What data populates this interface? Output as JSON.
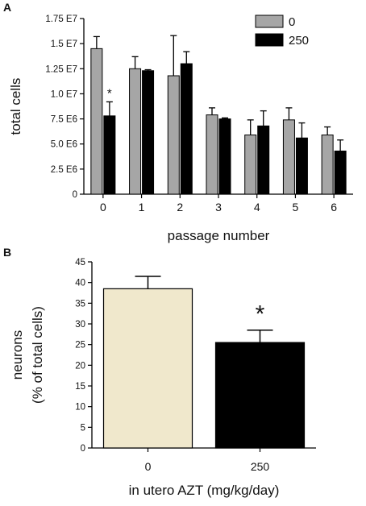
{
  "chart_data": [
    {
      "panel": "A",
      "type": "bar",
      "ylabel": "total cells",
      "xlabel": "passage number",
      "categories": [
        "0",
        "1",
        "2",
        "3",
        "4",
        "5",
        "6"
      ],
      "ylim": [
        0,
        17500000
      ],
      "yticks": [
        0,
        2500000,
        5000000,
        7500000,
        10000000,
        12500000,
        15000000,
        17500000
      ],
      "ytick_labels": [
        "0",
        "2.5 E6",
        "5.0 E6",
        "7.5 E6",
        "1.0 E7",
        "1.25 E7",
        "1.5 E7",
        "1.75 E7"
      ],
      "legend_position": "top-right",
      "series": [
        {
          "name": "0",
          "color": "#a6a6a6",
          "values": [
            14500000,
            12500000,
            11800000,
            7900000,
            5900000,
            7400000,
            5900000
          ],
          "errors": [
            1200000,
            1200000,
            4000000,
            700000,
            1500000,
            1200000,
            800000
          ]
        },
        {
          "name": "250",
          "color": "#000000",
          "values": [
            7800000,
            12300000,
            13000000,
            7500000,
            6800000,
            5600000,
            4300000
          ],
          "errors": [
            1400000,
            100000,
            1200000,
            100000,
            1500000,
            1500000,
            1100000
          ]
        }
      ],
      "annotations": [
        {
          "text": "*",
          "category": "0",
          "series": "250"
        }
      ]
    },
    {
      "panel": "B",
      "type": "bar",
      "ylabel_lines": [
        "neurons",
        "(% of total cells)"
      ],
      "xlabel": "in utero AZT (mg/kg/day)",
      "categories": [
        "0",
        "250"
      ],
      "values": [
        38.5,
        25.5
      ],
      "errors": [
        3.0,
        3.0
      ],
      "colors": [
        "#f0e8cc",
        "#000000"
      ],
      "ylim": [
        0,
        45
      ],
      "yticks": [
        0,
        5,
        10,
        15,
        20,
        25,
        30,
        35,
        40,
        45
      ],
      "annotations": [
        {
          "text": "*",
          "category": "250"
        }
      ]
    }
  ]
}
